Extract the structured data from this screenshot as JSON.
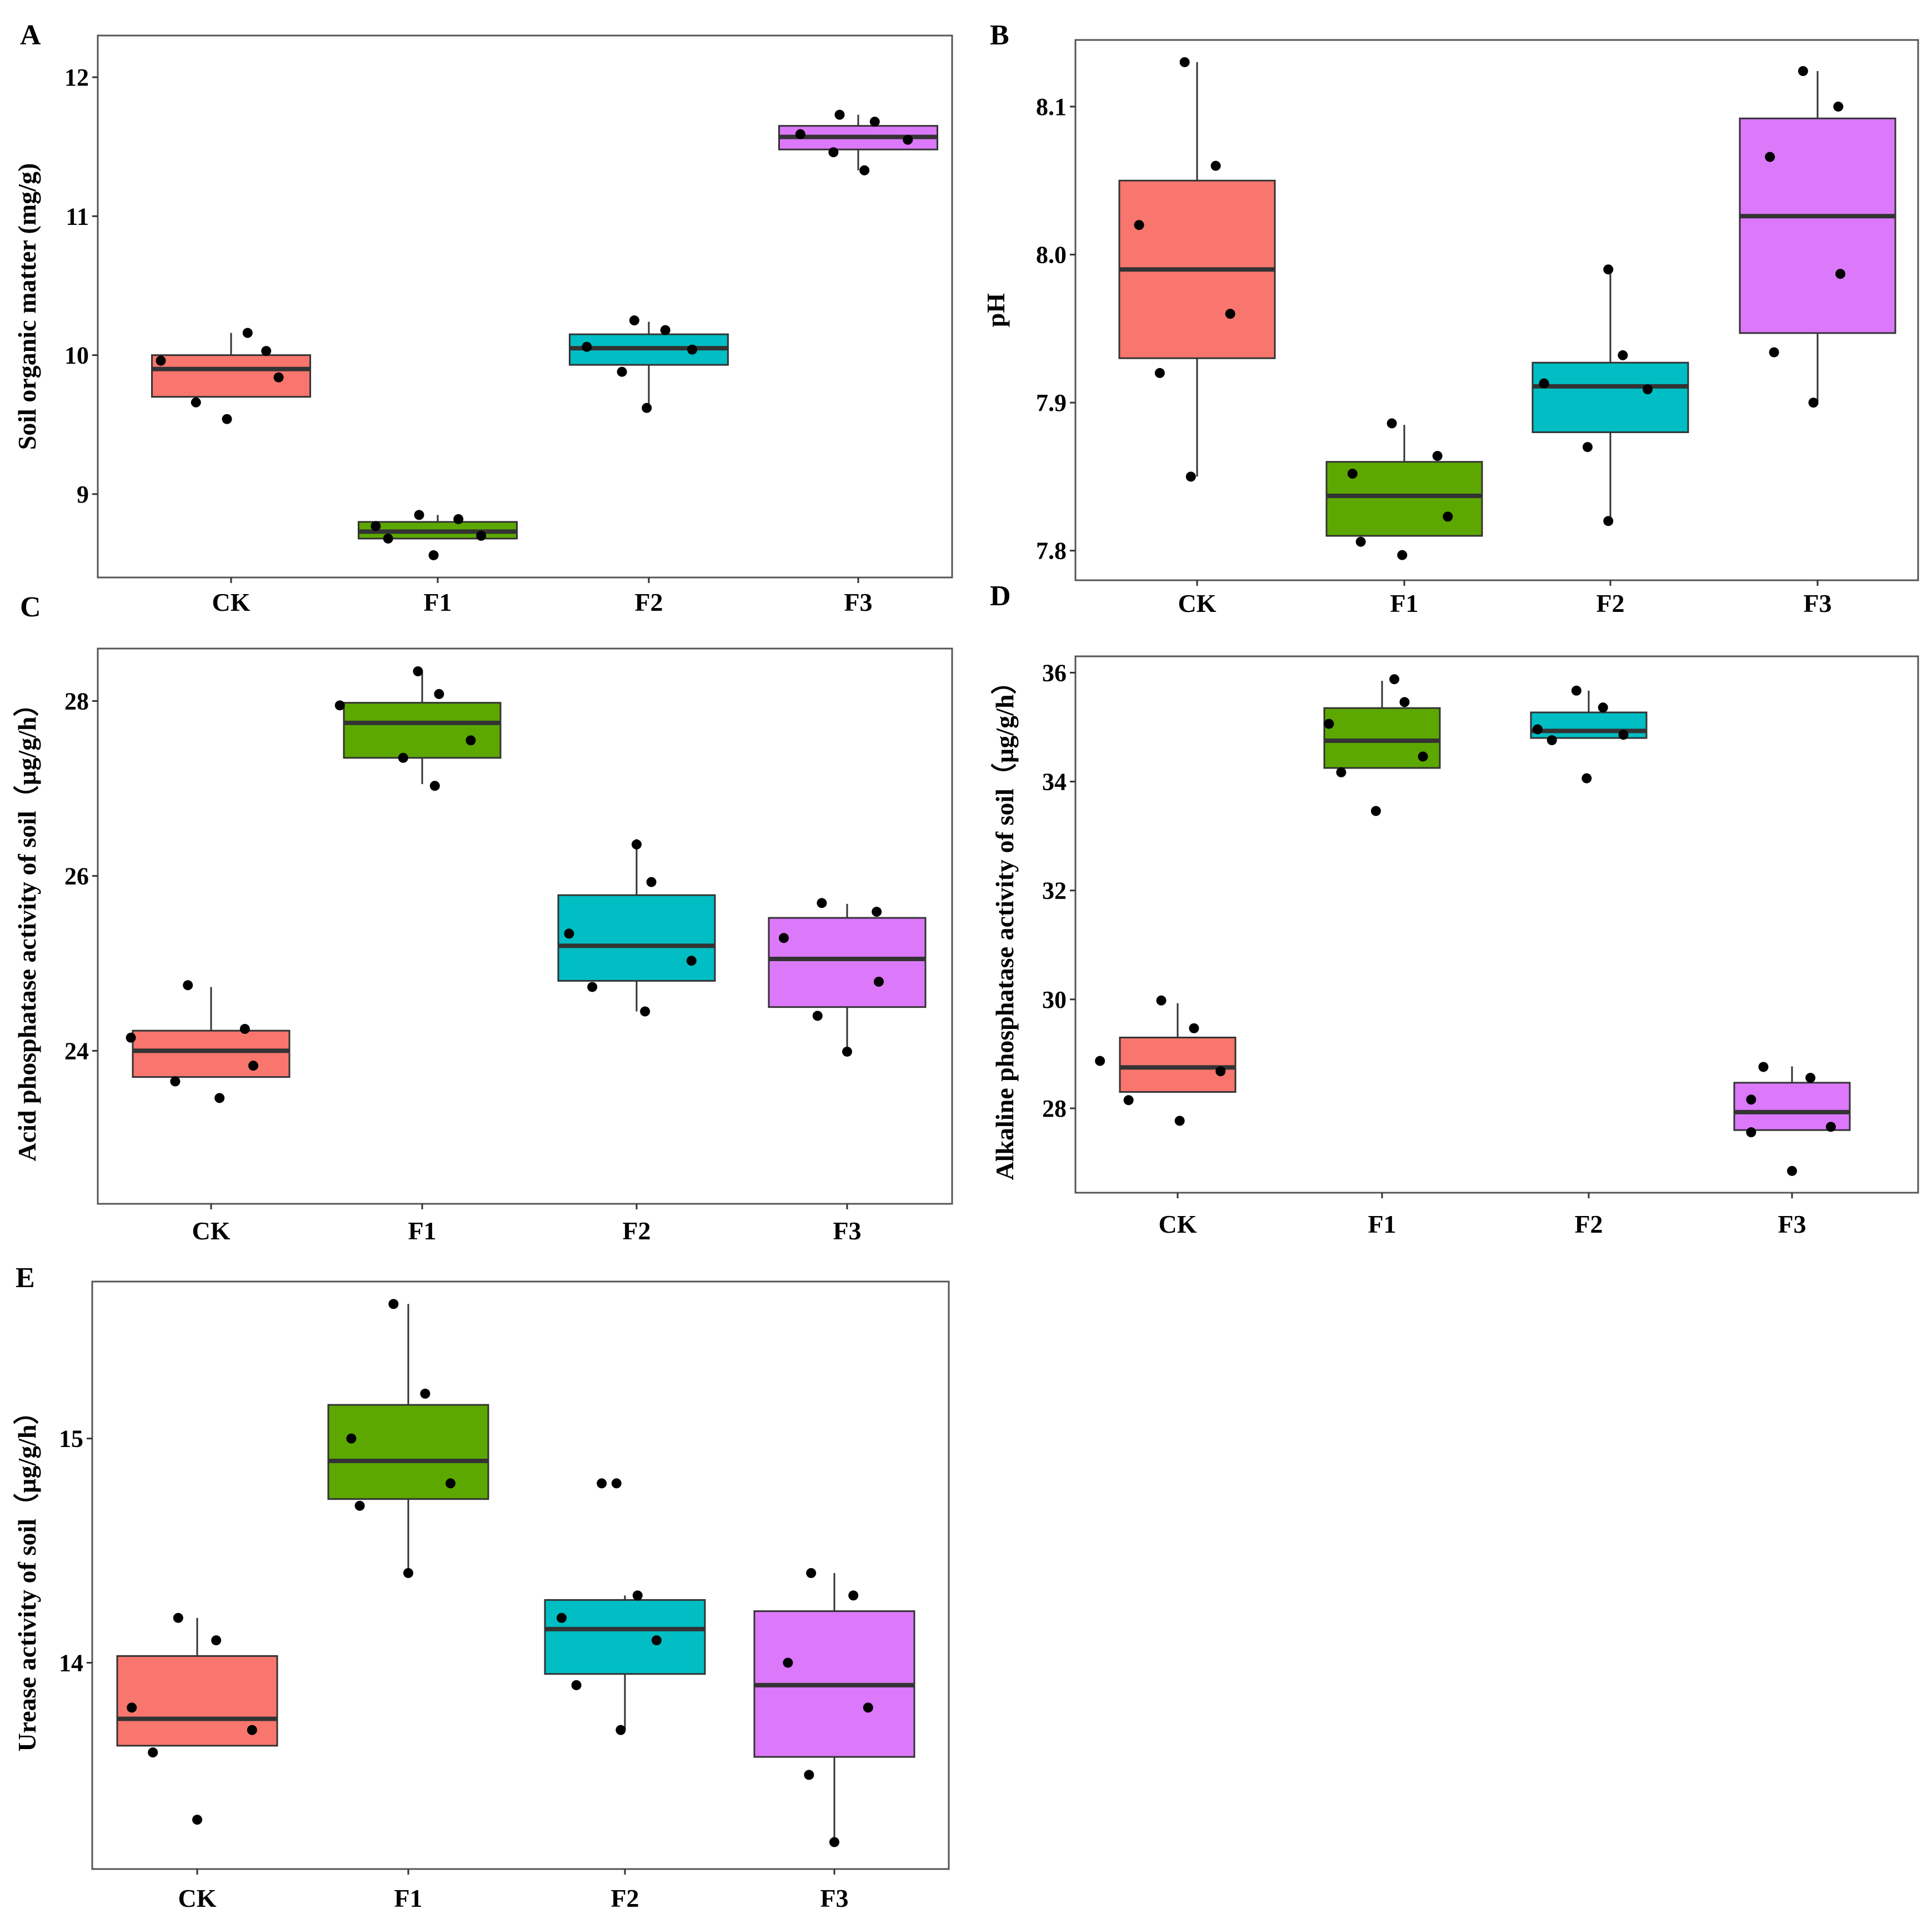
{
  "colors": {
    "CK": "#F8766D",
    "F1": "#5CA800",
    "F2": "#00BEC4",
    "F3": "#DC78FA"
  },
  "chart_data": [
    {
      "id": "A",
      "type": "box",
      "letter": "A",
      "ylabel": "Soil organic matter (mg/g)",
      "categories": [
        "CK",
        "F1",
        "F2",
        "F3"
      ],
      "ylim": [
        8.4,
        12.3
      ],
      "yticks": [
        {
          "v": 9,
          "label": "9"
        },
        {
          "v": 10,
          "label": "10"
        },
        {
          "v": 11,
          "label": "11"
        },
        {
          "v": 12,
          "label": "12"
        }
      ],
      "boxes": [
        {
          "q1": 9.7,
          "median": 9.9,
          "q3": 10.0,
          "lo": 9.7,
          "hi": 10.16
        },
        {
          "q1": 8.68,
          "median": 8.73,
          "q3": 8.8,
          "lo": 8.68,
          "hi": 8.85
        },
        {
          "q1": 9.93,
          "median": 10.05,
          "q3": 10.15,
          "lo": 9.62,
          "hi": 10.24
        },
        {
          "q1": 11.48,
          "median": 11.57,
          "q3": 11.65,
          "lo": 11.33,
          "hi": 11.73
        }
      ],
      "points": [
        [
          [
            -0.34,
            9.96
          ],
          [
            -0.17,
            9.66
          ],
          [
            -0.02,
            9.54
          ],
          [
            0.08,
            10.16
          ],
          [
            0.17,
            10.03
          ],
          [
            0.23,
            9.84
          ]
        ],
        [
          [
            -0.3,
            8.77
          ],
          [
            -0.24,
            8.68
          ],
          [
            -0.09,
            8.85
          ],
          [
            -0.02,
            8.56
          ],
          [
            0.1,
            8.82
          ],
          [
            0.21,
            8.7
          ]
        ],
        [
          [
            -0.3,
            10.06
          ],
          [
            -0.13,
            9.88
          ],
          [
            -0.01,
            9.62
          ],
          [
            -0.07,
            10.25
          ],
          [
            0.08,
            10.18
          ],
          [
            0.21,
            10.04
          ]
        ],
        [
          [
            -0.28,
            11.59
          ],
          [
            -0.12,
            11.46
          ],
          [
            -0.09,
            11.73
          ],
          [
            0.03,
            11.33
          ],
          [
            0.08,
            11.68
          ],
          [
            0.24,
            11.55
          ]
        ]
      ]
    },
    {
      "id": "B",
      "type": "box",
      "letter": "B",
      "ylabel": "pH",
      "categories": [
        "CK",
        "F1",
        "F2",
        "F3"
      ],
      "ylim": [
        7.78,
        8.145
      ],
      "yticks": [
        {
          "v": 7.8,
          "label": "7.8"
        },
        {
          "v": 7.9,
          "label": "7.9"
        },
        {
          "v": 8.0,
          "label": "8.0"
        },
        {
          "v": 8.1,
          "label": "8.1"
        }
      ],
      "boxes": [
        {
          "q1": 7.93,
          "median": 7.99,
          "q3": 8.05,
          "lo": 7.85,
          "hi": 8.13
        },
        {
          "q1": 7.81,
          "median": 7.837,
          "q3": 7.86,
          "lo": 7.81,
          "hi": 7.885
        },
        {
          "q1": 7.88,
          "median": 7.911,
          "q3": 7.927,
          "lo": 7.82,
          "hi": 7.99
        },
        {
          "q1": 7.947,
          "median": 8.026,
          "q3": 8.092,
          "lo": 7.9,
          "hi": 8.124
        }
      ],
      "points": [
        [
          [
            -0.28,
            8.02
          ],
          [
            -0.18,
            7.92
          ],
          [
            -0.06,
            8.13
          ],
          [
            -0.03,
            7.85
          ],
          [
            0.09,
            8.06
          ],
          [
            0.16,
            7.96
          ]
        ],
        [
          [
            -0.25,
            7.852
          ],
          [
            -0.21,
            7.806
          ],
          [
            -0.06,
            7.886
          ],
          [
            -0.01,
            7.797
          ],
          [
            0.16,
            7.864
          ],
          [
            0.21,
            7.823
          ]
        ],
        [
          [
            -0.32,
            7.913
          ],
          [
            -0.11,
            7.87
          ],
          [
            -0.01,
            7.99
          ],
          [
            -0.01,
            7.82
          ],
          [
            0.06,
            7.932
          ],
          [
            0.18,
            7.909
          ]
        ],
        [
          [
            -0.23,
            8.066
          ],
          [
            -0.21,
            7.934
          ],
          [
            -0.07,
            8.124
          ],
          [
            -0.02,
            7.9
          ],
          [
            0.1,
            8.1
          ],
          [
            0.11,
            7.987
          ]
        ]
      ]
    },
    {
      "id": "C",
      "type": "box",
      "letter": "C",
      "ylabel": "Acid phosphatase activity of soil（µg/g/h）",
      "categories": [
        "CK",
        "F1",
        "F2",
        "F3"
      ],
      "ylim": [
        22.25,
        28.6
      ],
      "yticks": [
        {
          "v": 24,
          "label": "24"
        },
        {
          "v": 26,
          "label": "26"
        },
        {
          "v": 28,
          "label": "28"
        }
      ],
      "boxes": [
        {
          "q1": 23.7,
          "median": 24.0,
          "q3": 24.23,
          "lo": 23.7,
          "hi": 24.73
        },
        {
          "q1": 27.35,
          "median": 27.75,
          "q3": 27.98,
          "lo": 27.05,
          "hi": 28.34
        },
        {
          "q1": 24.8,
          "median": 25.2,
          "q3": 25.78,
          "lo": 24.45,
          "hi": 26.42
        },
        {
          "q1": 24.5,
          "median": 25.05,
          "q3": 25.52,
          "lo": 23.95,
          "hi": 25.68
        }
      ],
      "points": [
        [
          [
            -0.38,
            24.15
          ],
          [
            -0.17,
            23.65
          ],
          [
            -0.11,
            24.75
          ],
          [
            0.04,
            23.46
          ],
          [
            0.16,
            24.25
          ],
          [
            0.2,
            23.83
          ]
        ],
        [
          [
            -0.39,
            27.95
          ],
          [
            -0.09,
            27.35
          ],
          [
            -0.02,
            28.34
          ],
          [
            0.06,
            27.03
          ],
          [
            0.08,
            28.08
          ],
          [
            0.23,
            27.55
          ]
        ],
        [
          [
            -0.32,
            25.34
          ],
          [
            -0.21,
            24.73
          ],
          [
            0.0,
            26.36
          ],
          [
            0.04,
            24.45
          ],
          [
            0.07,
            25.93
          ],
          [
            0.26,
            25.03
          ]
        ],
        [
          [
            -0.3,
            25.29
          ],
          [
            -0.14,
            24.4
          ],
          [
            -0.12,
            25.69
          ],
          [
            0.0,
            23.99
          ],
          [
            0.14,
            25.59
          ],
          [
            0.15,
            24.79
          ]
        ]
      ]
    },
    {
      "id": "D",
      "type": "box",
      "letter": "D",
      "ylabel": "Alkaline phosphatase activity of soil（µg/g/h）",
      "categories": [
        "CK",
        "F1",
        "F2",
        "F3"
      ],
      "ylim": [
        26.45,
        36.3
      ],
      "yticks": [
        {
          "v": 28,
          "label": "28"
        },
        {
          "v": 30,
          "label": "30"
        },
        {
          "v": 32,
          "label": "32"
        },
        {
          "v": 34,
          "label": "34"
        },
        {
          "v": 36,
          "label": "36"
        }
      ],
      "boxes": [
        {
          "q1": 28.3,
          "median": 28.75,
          "q3": 29.3,
          "lo": 28.3,
          "hi": 29.93
        },
        {
          "q1": 34.25,
          "median": 34.75,
          "q3": 35.35,
          "lo": 34.25,
          "hi": 35.85
        },
        {
          "q1": 34.8,
          "median": 34.93,
          "q3": 35.27,
          "lo": 34.8,
          "hi": 35.67
        },
        {
          "q1": 27.6,
          "median": 27.93,
          "q3": 28.47,
          "lo": 27.6,
          "hi": 28.77
        }
      ],
      "points": [
        [
          [
            -0.38,
            28.87
          ],
          [
            -0.24,
            28.15
          ],
          [
            -0.08,
            29.98
          ],
          [
            0.01,
            27.77
          ],
          [
            0.08,
            29.47
          ],
          [
            0.21,
            28.68
          ]
        ],
        [
          [
            -0.26,
            35.06
          ],
          [
            -0.03,
            33.46
          ],
          [
            -0.2,
            34.17
          ],
          [
            0.06,
            35.88
          ],
          [
            0.11,
            35.46
          ],
          [
            0.2,
            34.46
          ]
        ],
        [
          [
            -0.25,
            34.96
          ],
          [
            -0.18,
            34.76
          ],
          [
            -0.06,
            35.67
          ],
          [
            -0.01,
            34.06
          ],
          [
            0.07,
            35.36
          ],
          [
            0.17,
            34.86
          ]
        ],
        [
          [
            -0.2,
            28.16
          ],
          [
            -0.2,
            27.56
          ],
          [
            -0.14,
            28.76
          ],
          [
            0.0,
            26.85
          ],
          [
            0.09,
            28.56
          ],
          [
            0.19,
            27.66
          ]
        ]
      ]
    },
    {
      "id": "E",
      "type": "box",
      "letter": "E",
      "ylabel": "Urease activity of soil（µg/g/h）",
      "categories": [
        "CK",
        "F1",
        "F2",
        "F3"
      ],
      "ylim": [
        13.08,
        15.7
      ],
      "yticks": [
        {
          "v": 14,
          "label": "14"
        },
        {
          "v": 15,
          "label": "15"
        }
      ],
      "boxes": [
        {
          "q1": 13.63,
          "median": 13.75,
          "q3": 14.03,
          "lo": 13.63,
          "hi": 14.2
        },
        {
          "q1": 14.73,
          "median": 14.9,
          "q3": 15.15,
          "lo": 14.4,
          "hi": 15.6
        },
        {
          "q1": 13.95,
          "median": 14.15,
          "q3": 14.28,
          "lo": 13.7,
          "hi": 14.3
        },
        {
          "q1": 13.58,
          "median": 13.9,
          "q3": 14.23,
          "lo": 13.2,
          "hi": 14.4
        }
      ],
      "points": [
        [
          [
            -0.31,
            13.8
          ],
          [
            -0.21,
            13.6
          ],
          [
            -0.09,
            14.2
          ],
          [
            0.0,
            13.3
          ],
          [
            0.09,
            14.1
          ],
          [
            0.26,
            13.7
          ]
        ],
        [
          [
            -0.27,
            15.0
          ],
          [
            -0.23,
            14.7
          ],
          [
            -0.07,
            15.6
          ],
          [
            0.0,
            14.4
          ],
          [
            0.08,
            15.2
          ],
          [
            0.2,
            14.8
          ]
        ],
        [
          [
            -0.3,
            14.2
          ],
          [
            -0.23,
            13.9
          ],
          [
            -0.11,
            14.8
          ],
          [
            -0.02,
            13.7
          ],
          [
            -0.04,
            14.8
          ],
          [
            0.06,
            14.3
          ],
          [
            0.15,
            14.1
          ]
        ],
        [
          [
            -0.22,
            14.0
          ],
          [
            -0.12,
            13.5
          ],
          [
            -0.11,
            14.4
          ],
          [
            0.0,
            13.2
          ],
          [
            0.09,
            14.3
          ],
          [
            0.16,
            13.8
          ]
        ]
      ]
    }
  ]
}
